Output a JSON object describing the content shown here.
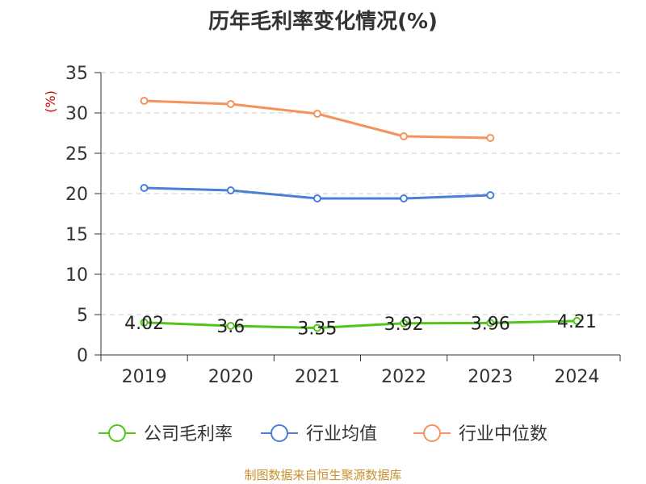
{
  "title": "历年毛利率变化情况(%)",
  "source": "制图数据来自恒生聚源数据库",
  "chart_data": {
    "type": "line",
    "title": "历年毛利率变化情况(%)",
    "xlabel": "",
    "ylabel": "(%)",
    "categories": [
      "2019",
      "2020",
      "2021",
      "2022",
      "2023",
      "2024"
    ],
    "ylim": [
      0,
      35
    ],
    "yticks": [
      0,
      5,
      10,
      15,
      20,
      25,
      30,
      35
    ],
    "grid": true,
    "legend_position": "bottom",
    "series": [
      {
        "name": "公司毛利率",
        "color": "#52c41a",
        "values": [
          4.02,
          3.6,
          3.35,
          3.92,
          3.96,
          4.21
        ],
        "labels": [
          "4.02",
          "3.6",
          "3.35",
          "3.92",
          "3.96",
          "4.21"
        ]
      },
      {
        "name": "行业均值",
        "color": "#4a7fd6",
        "values": [
          20.7,
          20.4,
          19.4,
          19.4,
          19.8,
          null
        ]
      },
      {
        "name": "行业中位数",
        "color": "#f4935a",
        "values": [
          31.5,
          31.1,
          29.9,
          27.1,
          26.9,
          null
        ]
      }
    ]
  }
}
